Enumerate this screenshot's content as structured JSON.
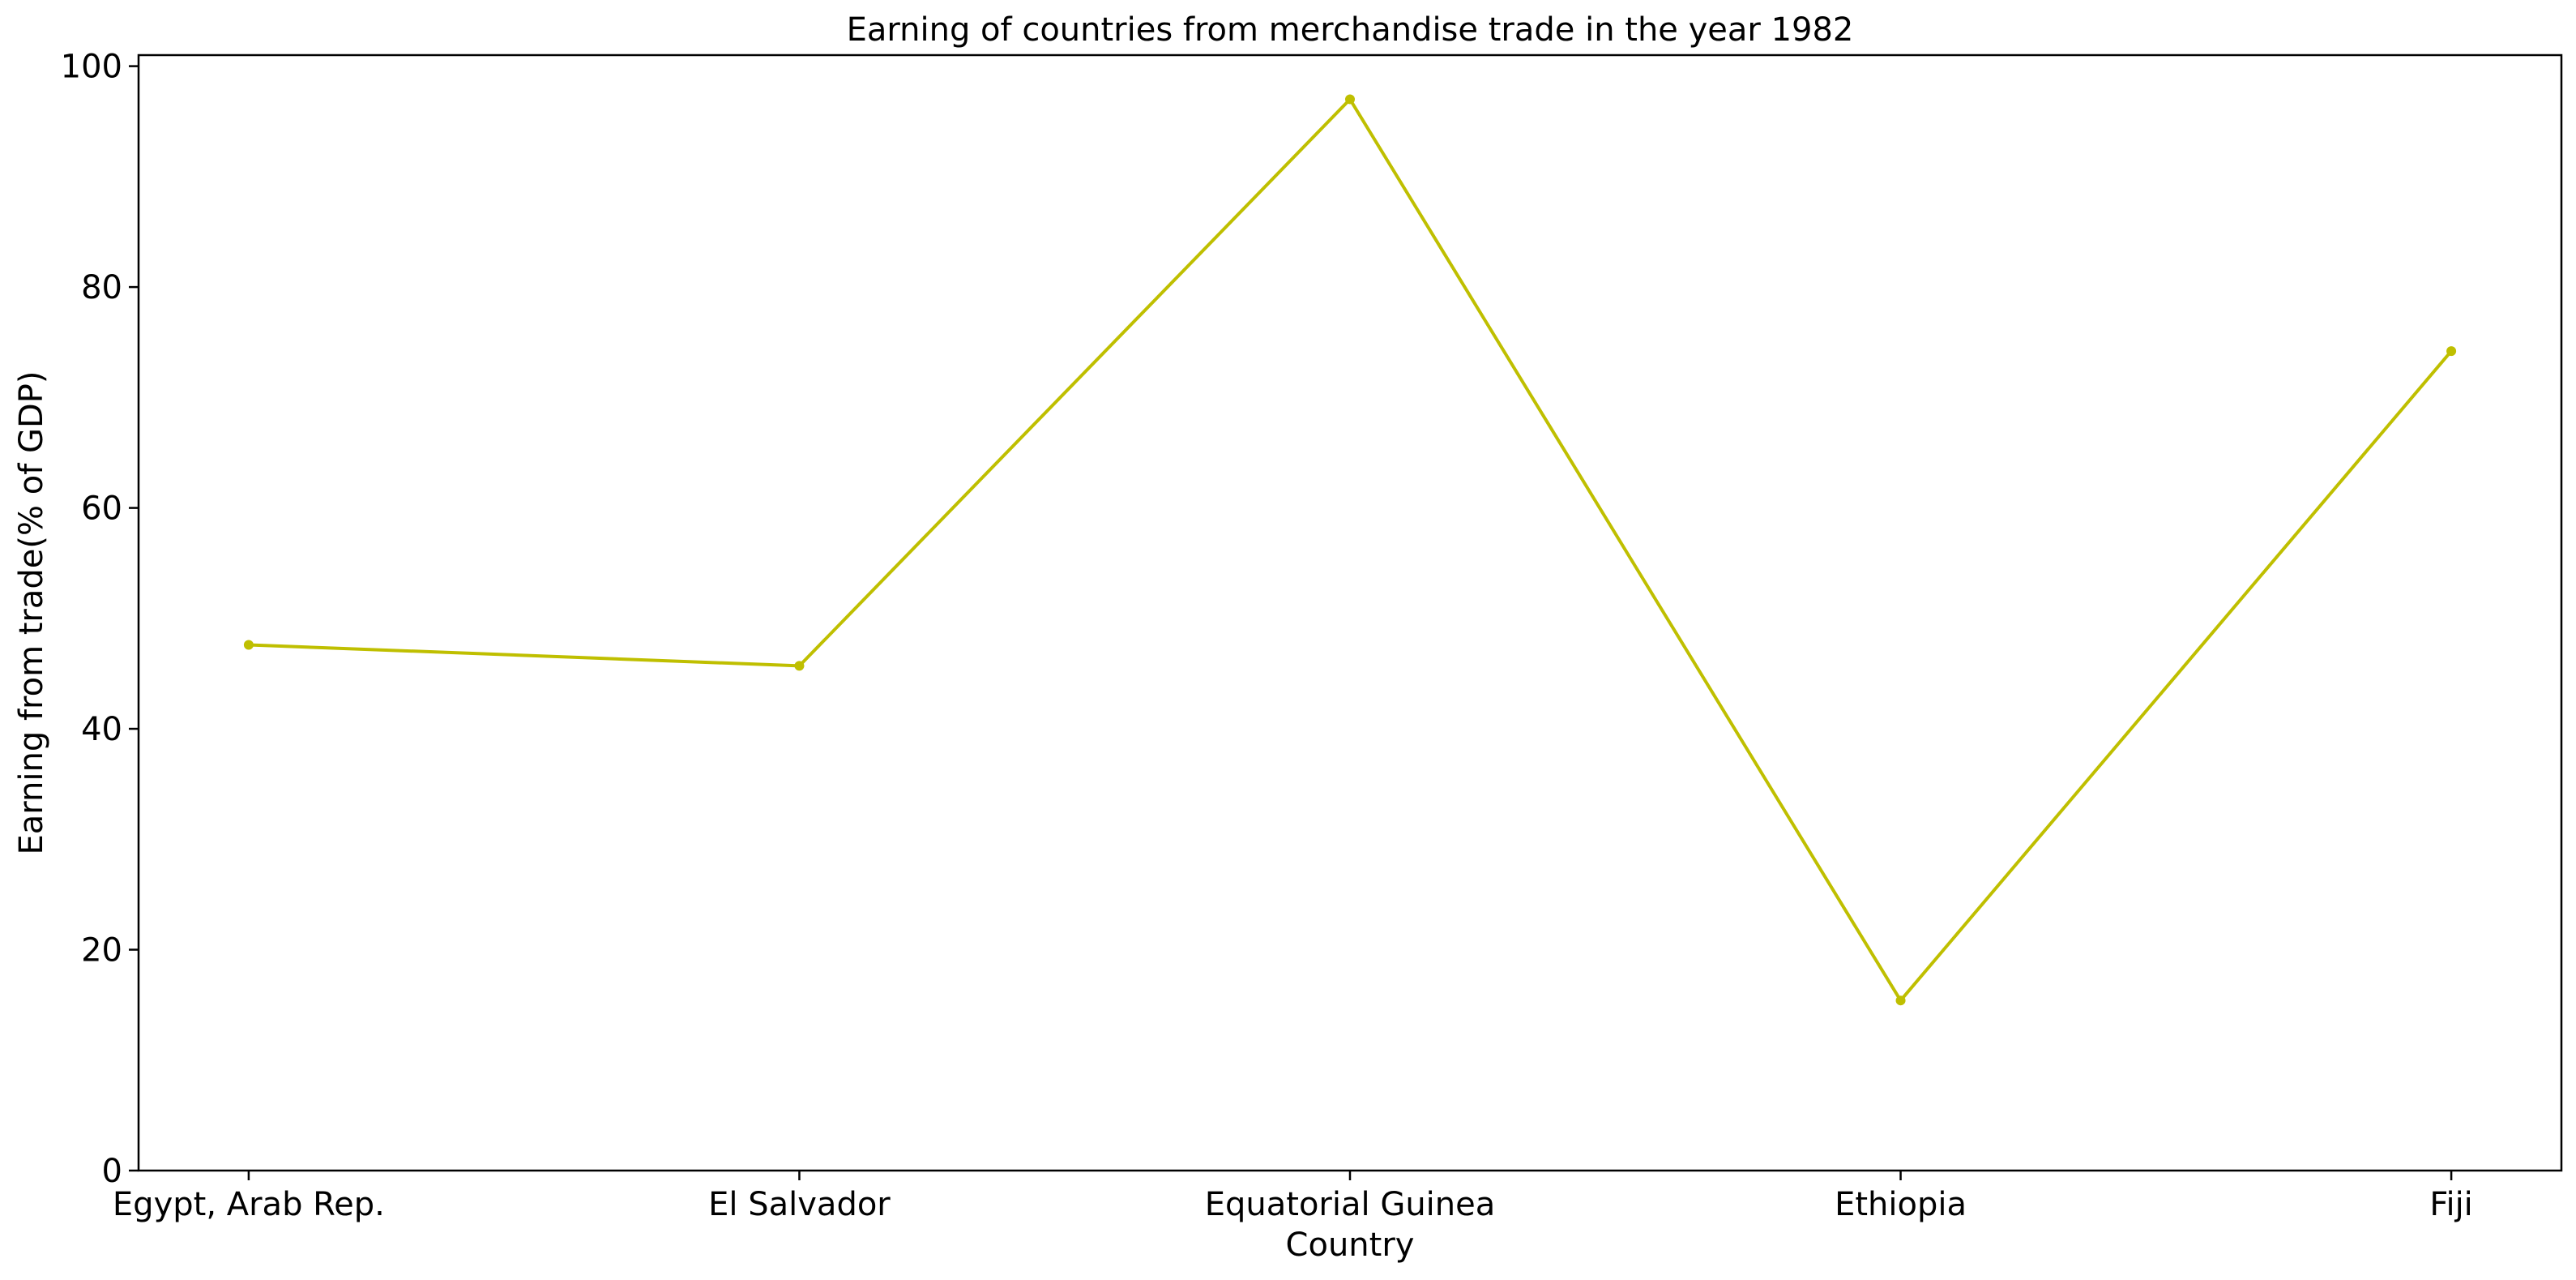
{
  "chart_data": {
    "type": "line",
    "title": "Earning of countries from merchandise trade in the year 1982",
    "xlabel": "Country",
    "ylabel": "Earning from trade(% of GDP)",
    "categories": [
      "Egypt, Arab Rep.",
      "El Salvador",
      "Equatorial Guinea",
      "Ethiopia",
      "Fiji"
    ],
    "series": [
      {
        "values": [
          47.6,
          45.7,
          97.0,
          15.4,
          74.2
        ],
        "color": "#bfbf00"
      }
    ],
    "ylim": [
      0,
      101
    ],
    "yticks": [
      0,
      20,
      40,
      60,
      80,
      100
    ],
    "grid": false,
    "legend": "none",
    "colors": {
      "line": "#bfbf00",
      "axes": "#000000",
      "background": "#ffffff"
    }
  }
}
